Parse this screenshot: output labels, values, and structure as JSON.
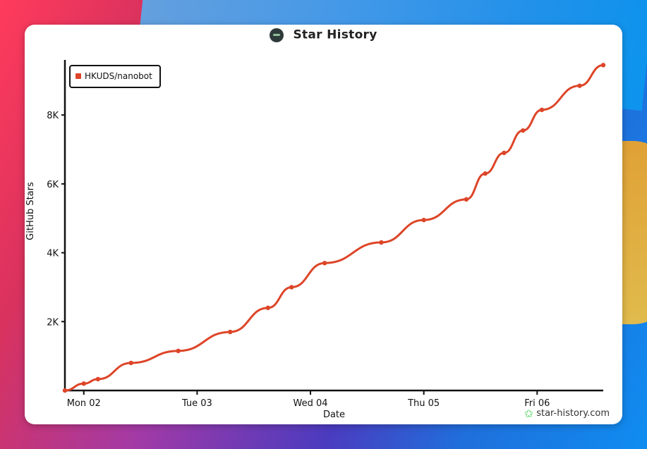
{
  "chart_title": "Star History",
  "watermark": "star-history.com",
  "icons": {
    "logo": "star-history-logo-icon",
    "watermark": "star-outline-icon"
  },
  "colors": {
    "series": "#dd4528"
  },
  "chart_data": {
    "type": "line",
    "title": "Star History",
    "xlabel": "Date",
    "ylabel": "GitHub Stars",
    "x_ticks": [
      "Mon 02",
      "Tue 03",
      "Wed 04",
      "Thu 05",
      "Fri 06"
    ],
    "y_ticks": [
      "2K",
      "4K",
      "6K",
      "8K"
    ],
    "ylim": [
      0,
      9600
    ],
    "xlim": [
      "2026-02-01T20:00",
      "2026-02-06T14:00"
    ],
    "legend": "top-left",
    "series": [
      {
        "name": "HKUDS/nanobot",
        "color": "#dd4528",
        "points": [
          {
            "x": "2026-02-01T20:00",
            "y": 0
          },
          {
            "x": "2026-02-02T00:00",
            "y": 200
          },
          {
            "x": "2026-02-02T03:00",
            "y": 330
          },
          {
            "x": "2026-02-02T10:00",
            "y": 800
          },
          {
            "x": "2026-02-02T20:00",
            "y": 1150
          },
          {
            "x": "2026-02-03T07:00",
            "y": 1700
          },
          {
            "x": "2026-02-03T15:00",
            "y": 2400
          },
          {
            "x": "2026-02-03T20:00",
            "y": 3000
          },
          {
            "x": "2026-02-04T03:00",
            "y": 3700
          },
          {
            "x": "2026-02-04T15:00",
            "y": 4300
          },
          {
            "x": "2026-02-05T00:00",
            "y": 4950
          },
          {
            "x": "2026-02-05T09:00",
            "y": 5550
          },
          {
            "x": "2026-02-05T13:00",
            "y": 6300
          },
          {
            "x": "2026-02-05T17:00",
            "y": 6900
          },
          {
            "x": "2026-02-05T21:00",
            "y": 7550
          },
          {
            "x": "2026-02-06T01:00",
            "y": 8150
          },
          {
            "x": "2026-02-06T09:00",
            "y": 8850
          },
          {
            "x": "2026-02-06T14:00",
            "y": 9450
          }
        ]
      }
    ]
  }
}
